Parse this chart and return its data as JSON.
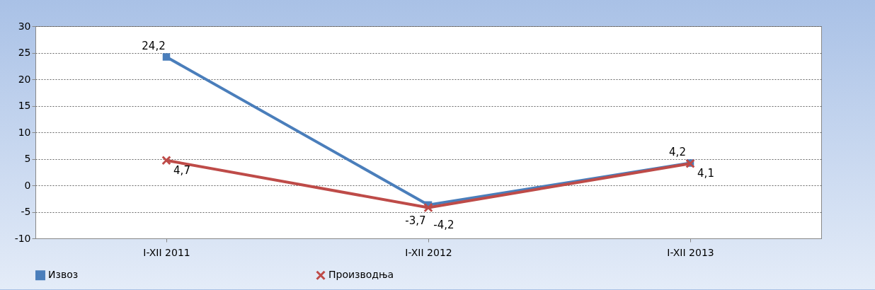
{
  "chart_data": {
    "type": "line",
    "categories": [
      "I-XII 2011",
      "I-XII 2012",
      "I-XII 2013"
    ],
    "series": [
      {
        "name": "Извоз",
        "color": "#4a7ebb",
        "marker": "square",
        "values": [
          24.2,
          -3.7,
          4.2
        ],
        "value_labels": [
          "24,2",
          "-3,7",
          "4,2"
        ]
      },
      {
        "name": "Производња",
        "color": "#be4b48",
        "marker": "cross",
        "values": [
          4.7,
          -4.2,
          4.1
        ],
        "value_labels": [
          "4,7",
          "-4,2",
          "4,1"
        ]
      }
    ],
    "ylim": [
      -10,
      30
    ],
    "yticks": [
      -10,
      -5,
      0,
      5,
      10,
      15,
      20,
      25,
      30
    ],
    "grid": "y",
    "legend": "bottom"
  }
}
